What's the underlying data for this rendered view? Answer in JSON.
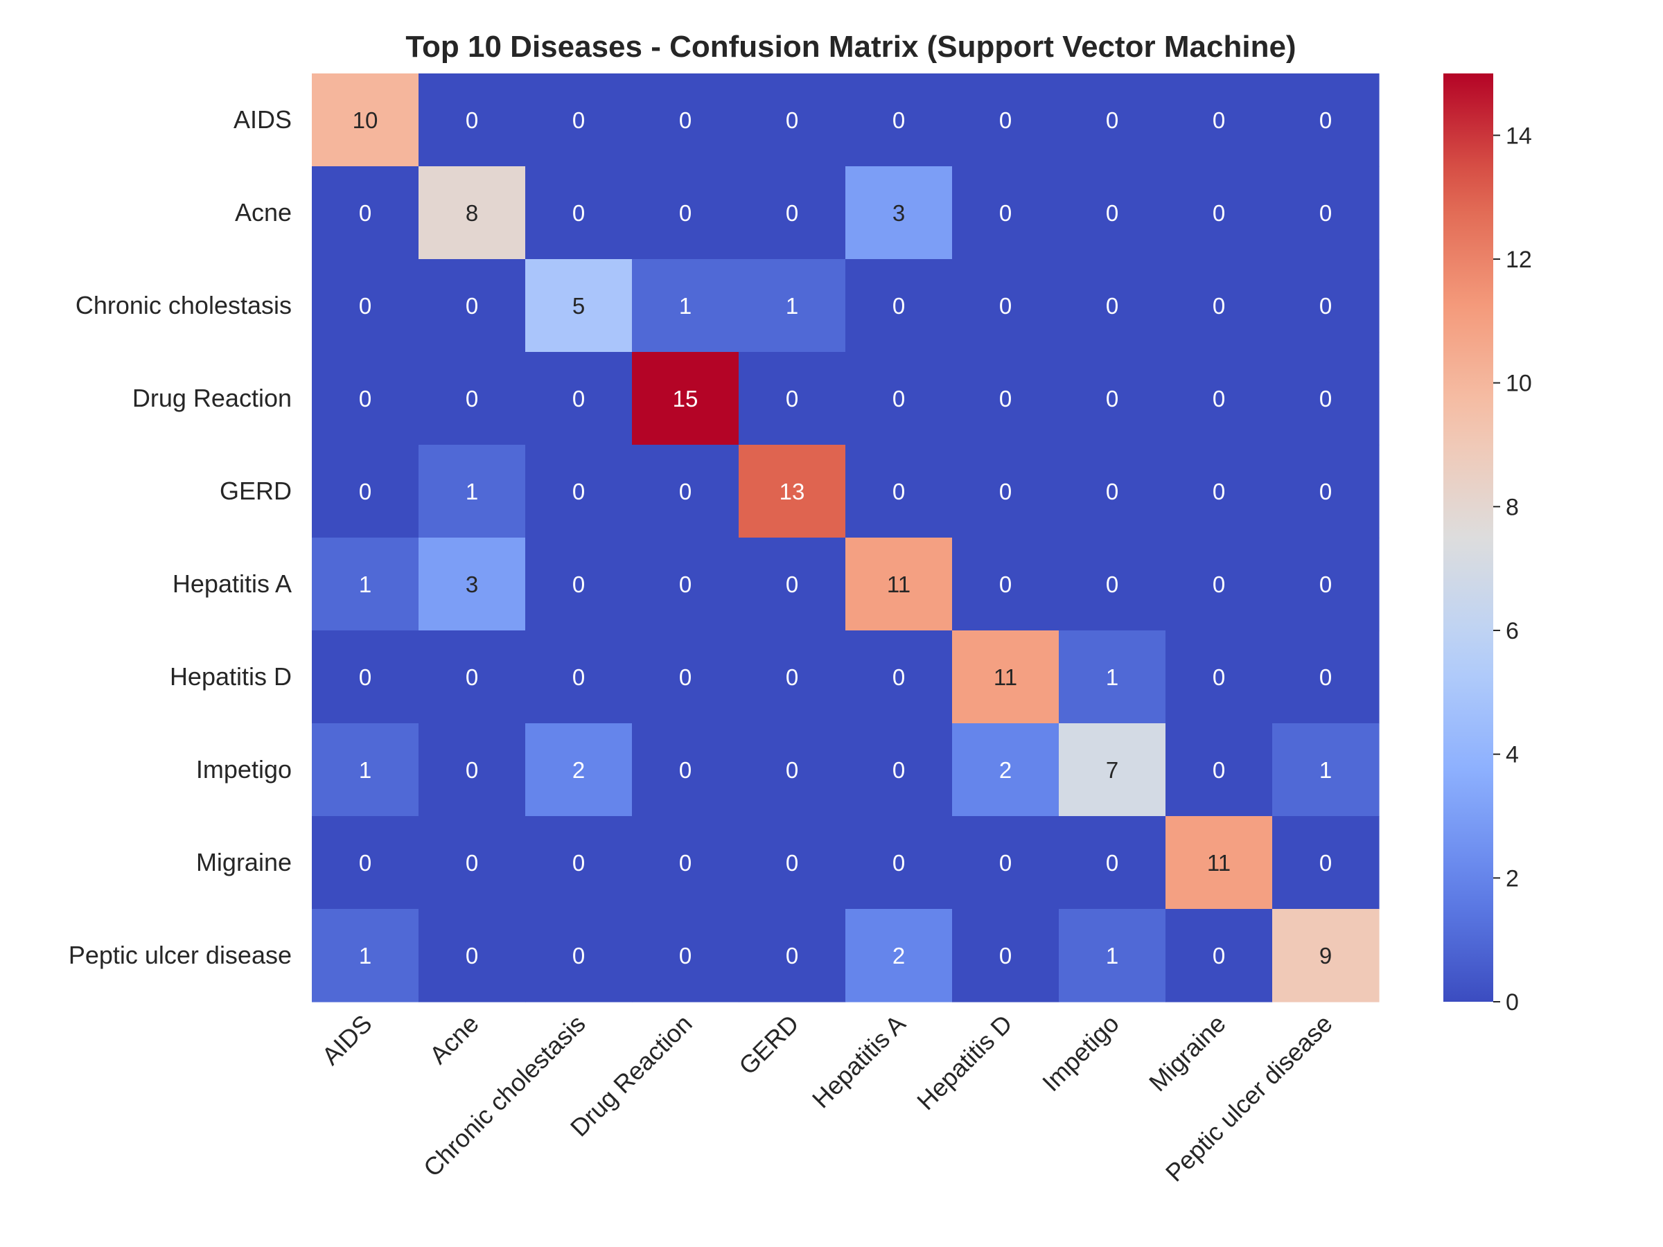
{
  "chart_data": {
    "type": "heatmap",
    "title": "Top 10 Diseases - Confusion Matrix (Support Vector Machine)",
    "xlabel": "",
    "ylabel": "",
    "row_labels": [
      "AIDS",
      "Acne",
      "Chronic cholestasis",
      "Drug Reaction",
      "GERD",
      "Hepatitis A",
      "Hepatitis D",
      "Impetigo",
      "Migraine",
      "Peptic ulcer disease"
    ],
    "col_labels": [
      "AIDS",
      "Acne",
      "Chronic cholestasis",
      "Drug Reaction",
      "GERD",
      "Hepatitis A",
      "Hepatitis D",
      "Impetigo",
      "Migraine",
      "Peptic ulcer disease"
    ],
    "values": [
      [
        10,
        0,
        0,
        0,
        0,
        0,
        0,
        0,
        0,
        0
      ],
      [
        0,
        8,
        0,
        0,
        0,
        3,
        0,
        0,
        0,
        0
      ],
      [
        0,
        0,
        5,
        1,
        1,
        0,
        0,
        0,
        0,
        0
      ],
      [
        0,
        0,
        0,
        15,
        0,
        0,
        0,
        0,
        0,
        0
      ],
      [
        0,
        1,
        0,
        0,
        13,
        0,
        0,
        0,
        0,
        0
      ],
      [
        1,
        3,
        0,
        0,
        0,
        11,
        0,
        0,
        0,
        0
      ],
      [
        0,
        0,
        0,
        0,
        0,
        0,
        11,
        1,
        0,
        0
      ],
      [
        1,
        0,
        2,
        0,
        0,
        0,
        2,
        7,
        0,
        1
      ],
      [
        0,
        0,
        0,
        0,
        0,
        0,
        0,
        0,
        11,
        0
      ],
      [
        1,
        0,
        0,
        0,
        0,
        2,
        0,
        1,
        0,
        9
      ]
    ],
    "colormap": "coolwarm",
    "vmin": 0,
    "vmax": 15,
    "colorbar_ticks": [
      0,
      2,
      4,
      6,
      8,
      10,
      12,
      14
    ],
    "annotated": true,
    "grid": false
  }
}
